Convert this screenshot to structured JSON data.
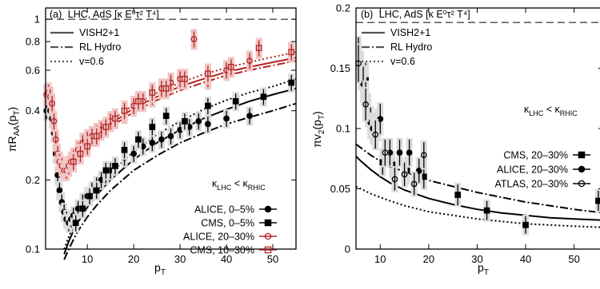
{
  "chart_data": [
    {
      "type": "scatter",
      "panel": "(a)",
      "header": "LHC, AdS [κ E⁰τ² T⁴]",
      "ylabel_main": "πR",
      "ylabel_sub": "AA",
      "ylabel_tail": "(p",
      "ylabel_sub2": "T",
      "ylabel_end": ")",
      "xlabel_main": "p",
      "xlabel_sub": "T",
      "ylog": true,
      "xlim": [
        1,
        55
      ],
      "ylim": [
        0.1,
        1.12
      ],
      "yticks": [
        0.1,
        0.2,
        0.4,
        0.6,
        0.8,
        1
      ],
      "ytick_labels": [
        "0.1",
        "0.2",
        "0.4",
        "0.6",
        "0.8",
        "1"
      ],
      "xticks": [
        10,
        20,
        30,
        40,
        50
      ],
      "xtick_labels": [
        "10",
        "20",
        "30",
        "40",
        "50"
      ],
      "ref_line": 1,
      "kappa_main": "κ",
      "kappa_sub1": "LHC",
      "kappa_mid": " < κ",
      "kappa_sub2": "RHIC",
      "line_legend": [
        {
          "label": "VISH2+1",
          "dash": "solid"
        },
        {
          "label": "RL Hydro",
          "dash": "dashdot"
        },
        {
          "label": "v=0.6",
          "dash": "dot"
        }
      ],
      "curves": [
        {
          "name": "VISH2+1 0-5%",
          "color": "#000000",
          "dash": "solid",
          "x": [
            5,
            6,
            7,
            8,
            10,
            12,
            15,
            20,
            25,
            30,
            35,
            40,
            45,
            50,
            55
          ],
          "y": [
            0.095,
            0.108,
            0.12,
            0.131,
            0.152,
            0.172,
            0.2,
            0.245,
            0.29,
            0.33,
            0.37,
            0.405,
            0.44,
            0.47,
            0.5
          ]
        },
        {
          "name": "RL Hydro 0-5%",
          "color": "#000000",
          "dash": "dashdot",
          "x": [
            5,
            6,
            7,
            8,
            10,
            12,
            15,
            20,
            25,
            30,
            35,
            40,
            45,
            50,
            55
          ],
          "y": [
            0.09,
            0.1,
            0.11,
            0.12,
            0.138,
            0.155,
            0.18,
            0.22,
            0.255,
            0.29,
            0.32,
            0.35,
            0.375,
            0.4,
            0.43
          ]
        },
        {
          "name": "v=0.6 0-5%",
          "color": "#000000",
          "dash": "dot",
          "x": [
            5,
            6,
            7,
            8,
            10,
            12,
            15,
            20,
            25,
            30,
            35,
            40,
            45,
            50,
            55
          ],
          "y": [
            0.1,
            0.113,
            0.126,
            0.138,
            0.162,
            0.185,
            0.215,
            0.265,
            0.315,
            0.36,
            0.405,
            0.445,
            0.48,
            0.51,
            0.55
          ]
        },
        {
          "name": "VISH2+1 20-30%",
          "color": "#b22222",
          "dash": "solid",
          "x": [
            5,
            6,
            7,
            8,
            10,
            12,
            15,
            20,
            25,
            30,
            35,
            40,
            45,
            50,
            55
          ],
          "y": [
            0.22,
            0.235,
            0.25,
            0.265,
            0.29,
            0.315,
            0.35,
            0.41,
            0.46,
            0.51,
            0.55,
            0.59,
            0.62,
            0.65,
            0.68
          ]
        },
        {
          "name": "RL Hydro 20-30%",
          "color": "#b22222",
          "dash": "dashdot",
          "x": [
            5,
            6,
            7,
            8,
            10,
            12,
            15,
            20,
            25,
            30,
            35,
            40,
            45,
            50,
            55
          ],
          "y": [
            0.215,
            0.228,
            0.242,
            0.256,
            0.28,
            0.305,
            0.34,
            0.395,
            0.445,
            0.49,
            0.53,
            0.57,
            0.6,
            0.63,
            0.66
          ]
        },
        {
          "name": "v=0.6 20-30%",
          "color": "#b22222",
          "dash": "dot",
          "x": [
            5,
            6,
            7,
            8,
            10,
            12,
            15,
            20,
            25,
            30,
            35,
            40,
            45,
            50,
            55
          ],
          "y": [
            0.225,
            0.24,
            0.255,
            0.27,
            0.298,
            0.325,
            0.362,
            0.425,
            0.478,
            0.53,
            0.575,
            0.615,
            0.65,
            0.685,
            0.72
          ]
        }
      ],
      "series": [
        {
          "name": "ALICE, 0–5%",
          "marker": "circle-filled",
          "color": "#000000",
          "x": [
            1.2,
            1.6,
            2.0,
            2.4,
            2.8,
            3.2,
            3.6,
            4.0,
            4.5,
            5.0,
            5.5,
            6.0,
            6.5,
            7.0,
            8.0,
            9.0,
            10.0,
            11.0,
            12.0,
            13.0,
            14.0,
            15.0,
            16.0,
            18.0,
            20.0,
            22.0,
            24.0,
            26.0,
            28.0,
            30.0,
            32.0,
            34.0,
            36.0,
            40.0,
            45.0
          ],
          "y": [
            0.4,
            0.42,
            0.4,
            0.37,
            0.32,
            0.26,
            0.21,
            0.18,
            0.16,
            0.145,
            0.135,
            0.13,
            0.135,
            0.14,
            0.15,
            0.16,
            0.17,
            0.18,
            0.19,
            0.2,
            0.21,
            0.22,
            0.23,
            0.25,
            0.26,
            0.28,
            0.29,
            0.3,
            0.31,
            0.33,
            0.34,
            0.36,
            0.35,
            0.37,
            0.38
          ]
        },
        {
          "name": "CMS, 0–5%",
          "marker": "square-filled",
          "color": "#000000",
          "x": [
            7.5,
            9.0,
            10.5,
            12.0,
            14.0,
            16.0,
            18.0,
            21.0,
            24.0,
            27.0,
            31.0,
            36.0,
            42.0,
            48.0,
            54.0
          ],
          "y": [
            0.13,
            0.15,
            0.17,
            0.18,
            0.22,
            0.23,
            0.27,
            0.3,
            0.34,
            0.38,
            0.36,
            0.42,
            0.44,
            0.46,
            0.53
          ]
        },
        {
          "name": "ALICE, 20–30%",
          "marker": "circle-open",
          "color": "#b22222",
          "x": [
            1.2,
            1.6,
            2.0,
            2.4,
            2.8,
            3.2,
            3.6,
            4.0,
            4.5,
            5.0,
            5.5,
            6.0,
            6.5,
            7.0,
            8.0,
            9.0,
            10.0,
            11.0,
            12.0,
            13.0,
            14.0,
            15.0,
            16.0,
            18.0,
            20.0,
            22.0,
            24.0,
            26.0,
            28.0,
            30.0,
            33.0,
            36.0,
            40.0,
            45.0
          ],
          "y": [
            0.47,
            0.48,
            0.46,
            0.43,
            0.36,
            0.3,
            0.26,
            0.24,
            0.23,
            0.22,
            0.22,
            0.23,
            0.24,
            0.25,
            0.27,
            0.29,
            0.3,
            0.31,
            0.32,
            0.33,
            0.34,
            0.36,
            0.37,
            0.39,
            0.42,
            0.44,
            0.46,
            0.5,
            0.53,
            0.55,
            0.82,
            0.55,
            0.6,
            0.66
          ]
        },
        {
          "name": "CMS, 10–30%",
          "marker": "square-open",
          "color": "#b22222",
          "x": [
            7.0,
            8.5,
            10.0,
            12.0,
            14.0,
            16.0,
            18.0,
            21.0,
            24.0,
            27.0,
            31.0,
            36.0,
            41.0,
            47.0,
            54.0
          ],
          "y": [
            0.24,
            0.26,
            0.28,
            0.31,
            0.34,
            0.37,
            0.4,
            0.44,
            0.48,
            0.5,
            0.55,
            0.58,
            0.62,
            0.75,
            0.72
          ]
        }
      ]
    },
    {
      "type": "scatter",
      "panel": "(b)",
      "header": "LHC, AdS [κ E⁰τ² T⁴]",
      "ylabel_main": "πv",
      "ylabel_sub": "2",
      "ylabel_tail": "(p",
      "ylabel_sub2": "T",
      "ylabel_end": ")",
      "xlabel_main": "p",
      "xlabel_sub": "T",
      "ylog": false,
      "xlim": [
        5,
        56
      ],
      "ylim": [
        0,
        0.2
      ],
      "yticks": [
        0,
        0.05,
        0.1,
        0.15,
        0.2
      ],
      "ytick_labels": [
        "0",
        "0.05",
        "0.1",
        "0.15",
        "0.2"
      ],
      "xticks": [
        10,
        20,
        30,
        40,
        50
      ],
      "xtick_labels": [
        "10",
        "20",
        "30",
        "40",
        "50"
      ],
      "ref_line": 0.188,
      "kappa_main": "κ",
      "kappa_sub1": "LHC",
      "kappa_mid": " < κ",
      "kappa_sub2": "RHIC",
      "line_legend": [
        {
          "label": "VISH2+1",
          "dash": "solid"
        },
        {
          "label": "RL Hydro",
          "dash": "dashdot"
        },
        {
          "label": "v=0.6",
          "dash": "dot"
        }
      ],
      "curves": [
        {
          "name": "VISH2+1",
          "color": "#000000",
          "dash": "solid",
          "x": [
            5,
            6,
            8,
            10,
            12,
            15,
            20,
            25,
            30,
            35,
            40,
            45,
            50,
            56
          ],
          "y": [
            0.077,
            0.073,
            0.066,
            0.06,
            0.055,
            0.049,
            0.042,
            0.037,
            0.033,
            0.03,
            0.028,
            0.026,
            0.025,
            0.024
          ]
        },
        {
          "name": "RL Hydro",
          "color": "#000000",
          "dash": "dashdot",
          "x": [
            5,
            6,
            8,
            10,
            12,
            15,
            20,
            25,
            30,
            35,
            40,
            45,
            50,
            56
          ],
          "y": [
            0.087,
            0.084,
            0.078,
            0.073,
            0.069,
            0.064,
            0.057,
            0.052,
            0.047,
            0.043,
            0.039,
            0.036,
            0.033,
            0.03
          ]
        },
        {
          "name": "v=0.6",
          "color": "#000000",
          "dash": "dot",
          "x": [
            5,
            6,
            8,
            10,
            12,
            15,
            20,
            25,
            30,
            35,
            40,
            45,
            50,
            56
          ],
          "y": [
            0.052,
            0.05,
            0.046,
            0.043,
            0.04,
            0.036,
            0.031,
            0.028,
            0.025,
            0.023,
            0.021,
            0.02,
            0.019,
            0.018
          ]
        }
      ],
      "series": [
        {
          "name": "CMS, 20–30%",
          "marker": "square-filled",
          "color": "#000000",
          "x": [
            5.5,
            7.0,
            9.0,
            10.5,
            12.5,
            15.5,
            19.0,
            26.0,
            32.0,
            40.0,
            55.0
          ],
          "y": [
            0.158,
            0.14,
            0.1,
            0.072,
            0.07,
            0.065,
            0.06,
            0.045,
            0.032,
            0.02,
            0.04
          ]
        },
        {
          "name": "ALICE, 20–30%",
          "marker": "circle-filled",
          "color": "#000000",
          "x": [
            5.5,
            6.0,
            6.5,
            7.0,
            7.5,
            8.0,
            8.5,
            9.0,
            9.5,
            10.0,
            12.0,
            14.0,
            16.0,
            18.0
          ],
          "y": [
            0.16,
            0.148,
            0.137,
            0.125,
            0.115,
            0.105,
            0.1,
            0.1,
            0.103,
            0.108,
            0.08,
            0.08,
            0.08,
            0.065
          ]
        },
        {
          "name": "ATLAS, 20–30%",
          "marker": "circle-open",
          "color": "#000000",
          "x": [
            5.5,
            7.0,
            9.0,
            11.0,
            13.0,
            15.0,
            17.0,
            19.0
          ],
          "y": [
            0.154,
            0.12,
            0.095,
            0.08,
            0.058,
            0.062,
            0.054,
            0.078
          ]
        }
      ]
    }
  ]
}
